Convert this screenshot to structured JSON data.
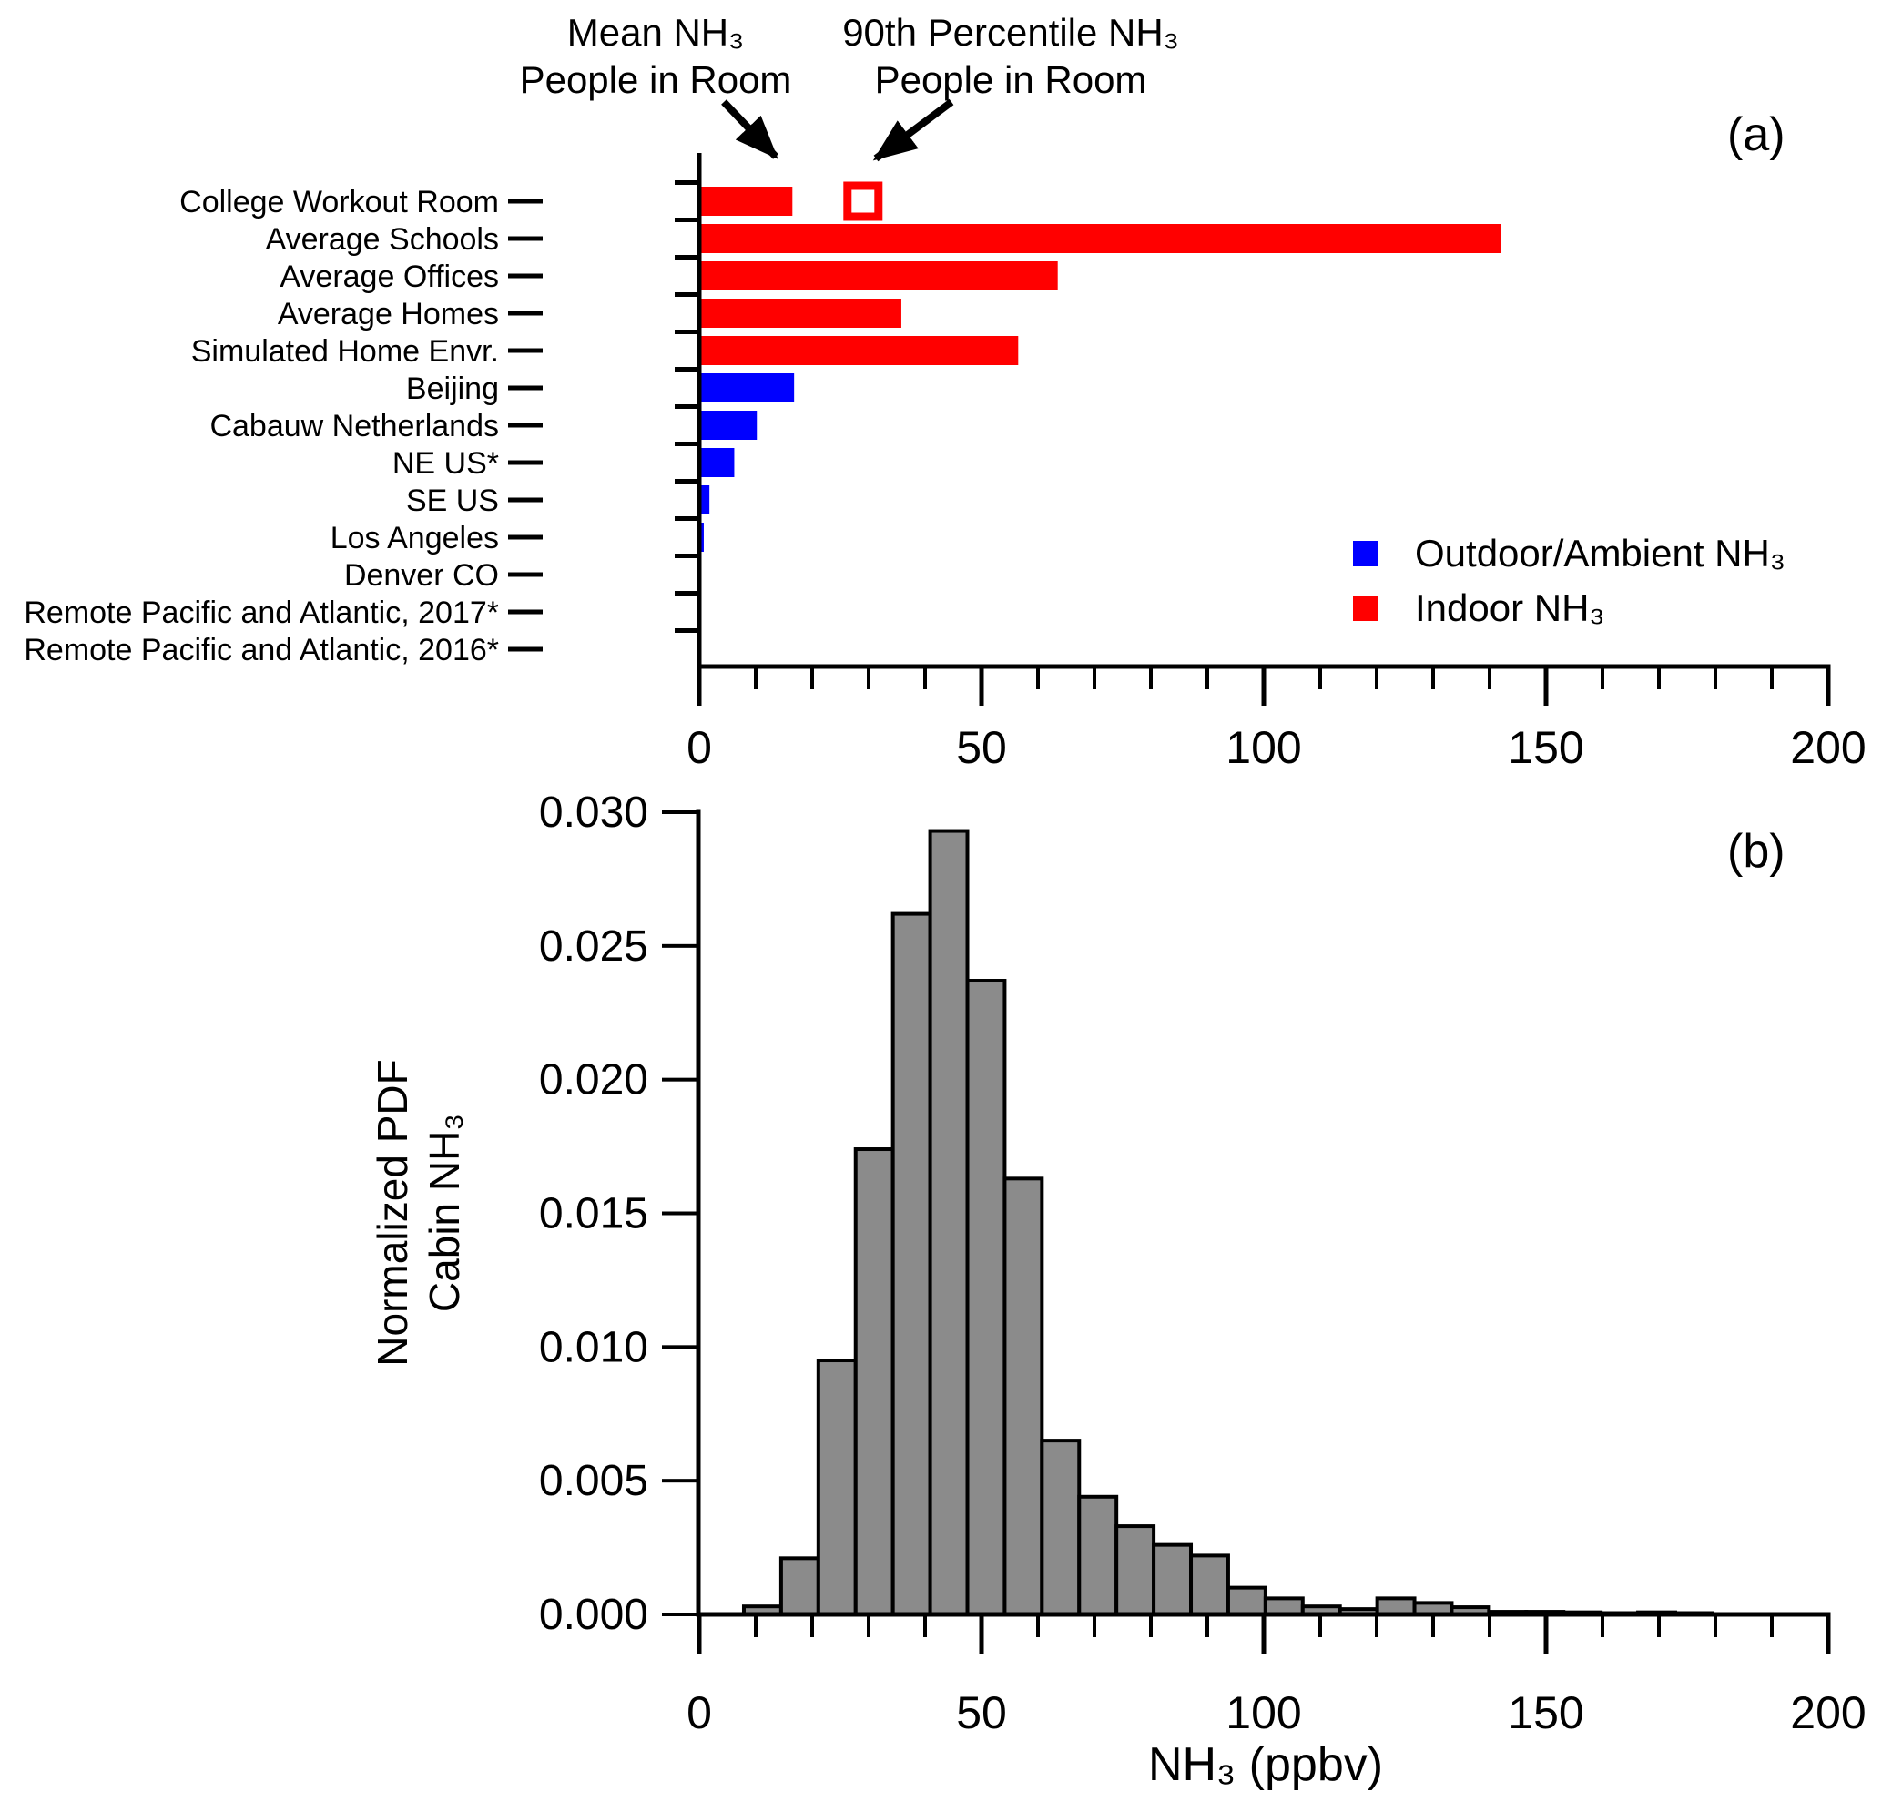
{
  "colors": {
    "indoor_red": "#ff0000",
    "outdoor_blue": "#0000ff",
    "histogram_gray": "#8b8b8b",
    "axis_black": "#000000",
    "background": "#ffffff"
  },
  "panel_a": {
    "label": "(a)",
    "annotations": {
      "mean": {
        "line1": "Mean NH₃",
        "line2": "People in Room"
      },
      "p90": {
        "line1": "90th Percentile NH₃",
        "line2": "People in Room"
      }
    },
    "legend": {
      "outdoor_label": "Outdoor/Ambient NH₃",
      "indoor_label": "Indoor NH₃"
    }
  },
  "panel_b": {
    "label": "(b)",
    "ylabel_line1": "Normalized PDF",
    "ylabel_line2": "Cabin NH₃",
    "xlabel": "NH₃ (ppbv)"
  },
  "chart_data": [
    {
      "id": "panel_a",
      "type": "bar",
      "orientation": "horizontal",
      "units": "ppbv",
      "xlim": [
        0,
        200
      ],
      "x_major_ticks": [
        0,
        50,
        100,
        150,
        200
      ],
      "x_minor_tick_step": 10,
      "grid": false,
      "legend_position": "lower right",
      "categories": [
        "College Workout Room",
        "Average Schools",
        "Average Offices",
        "Average Homes",
        "Simulated Home Envr.",
        "Beijing",
        "Cabauw Netherlands",
        "NE US*",
        "SE US",
        "Los Angeles",
        "Denver CO",
        "Remote Pacific and Atlantic, 2017*",
        "Remote Pacific and Atlantic, 2016*"
      ],
      "values": [
        16.5,
        142,
        63.5,
        35.8,
        56.5,
        16.8,
        10.2,
        6.2,
        1.8,
        0.8,
        0.4,
        0.2,
        0.1
      ],
      "groups": [
        "indoor",
        "indoor",
        "indoor",
        "indoor",
        "indoor",
        "outdoor",
        "outdoor",
        "outdoor",
        "outdoor",
        "outdoor",
        "outdoor",
        "outdoor",
        "outdoor"
      ],
      "point_marker": {
        "category": "College Workout Room",
        "value": 29,
        "meaning": "90th Percentile NH₃ People in Room",
        "shape": "open-square",
        "color": "#ff0000"
      }
    },
    {
      "id": "panel_b",
      "type": "histogram",
      "xlim": [
        0,
        200
      ],
      "ylim": [
        0,
        0.03
      ],
      "y_tick_labels": [
        "0.000",
        "0.005",
        "0.010",
        "0.015",
        "0.020",
        "0.025",
        "0.030"
      ],
      "y_tick_values": [
        0,
        0.005,
        0.01,
        0.015,
        0.02,
        0.025,
        0.03
      ],
      "x_major_ticks": [
        0,
        50,
        100,
        150,
        200
      ],
      "x_minor_tick_step": 10,
      "bin_width": 6.6,
      "bins_left_edge": [
        7.9,
        14.5,
        21.1,
        27.7,
        34.3,
        40.9,
        47.5,
        54.1,
        60.7,
        67.3,
        73.9,
        80.5,
        87.1,
        93.7,
        100.3,
        106.9,
        113.5,
        120.1,
        126.7,
        133.3,
        139.9,
        146.5,
        153.1,
        159.7,
        166.3,
        172.9
      ],
      "pdf_values": [
        0.0003,
        0.0021,
        0.0095,
        0.0174,
        0.0262,
        0.0293,
        0.0237,
        0.0163,
        0.0065,
        0.0044,
        0.0033,
        0.0026,
        0.0022,
        0.001,
        0.0006,
        0.0003,
        0.0002,
        0.0006,
        0.00043,
        0.00027,
        0.0001,
        0.0001,
        8e-05,
        5e-05,
        8e-05,
        3e-05
      ]
    }
  ]
}
